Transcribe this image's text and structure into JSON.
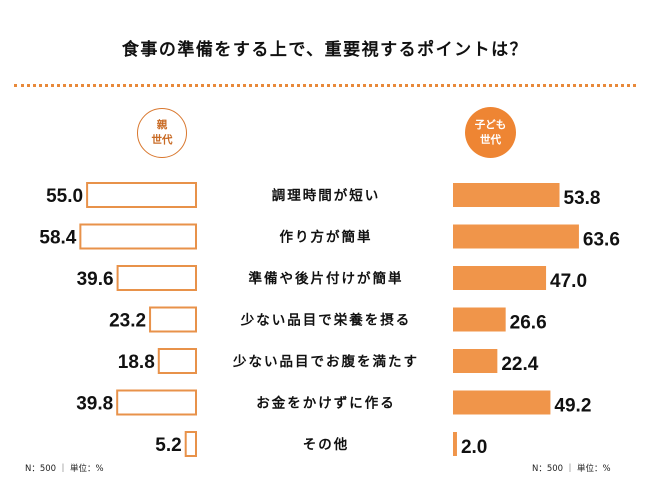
{
  "title": "食事の準備をする上で、重要視するポイントは？",
  "legend": {
    "parent": "親\n世代",
    "child": "子ども\n世代"
  },
  "notes": {
    "left": "N：500 ｜ 単位：%",
    "right": "N：500 ｜ 単位：%"
  },
  "colors": {
    "accent": "#f0954a",
    "parent_outline": "#e8924a",
    "dots": "#e8893a"
  },
  "chart_data": {
    "type": "bar",
    "title": "食事の準備をする上で、重要視するポイントは？",
    "unit": "%",
    "sample_size": "N：500",
    "categories": [
      "調理時間が短い",
      "作り方が簡単",
      "準備や後片付けが簡単",
      "少ない品目で栄養を摂る",
      "少ない品目でお腹を満たす",
      "お金をかけずに作る",
      "その他"
    ],
    "series": [
      {
        "name": "親世代",
        "values": [
          55.0,
          58.4,
          39.6,
          23.2,
          18.8,
          39.8,
          5.2
        ],
        "labels": [
          "55.0",
          "58.4",
          "39.6",
          "23.2",
          "18.8",
          "39.8",
          "5.2"
        ],
        "style": "outline"
      },
      {
        "name": "子ども世代",
        "values": [
          53.8,
          63.6,
          47.0,
          26.6,
          22.4,
          49.2,
          2.0
        ],
        "labels": [
          "53.8",
          "63.6",
          "47.0",
          "26.6",
          "22.4",
          "49.2",
          "2.0"
        ],
        "style": "filled"
      }
    ],
    "layout": "butterfly",
    "grid": false
  }
}
